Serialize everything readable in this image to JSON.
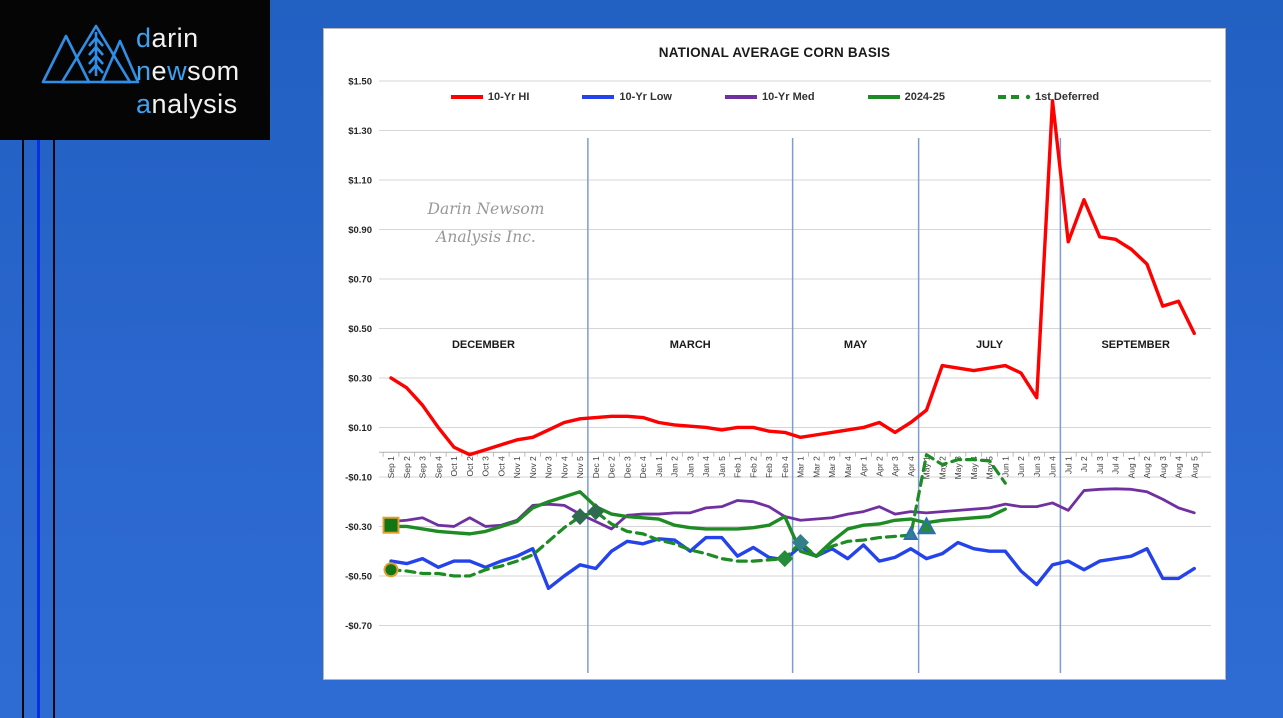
{
  "logo": {
    "accent_color": "#3da2f2",
    "words": [
      {
        "text": "darin",
        "accent_chars": [
          0
        ]
      },
      {
        "text": "newsom",
        "accent_chars": [
          0,
          2
        ]
      },
      {
        "text": "analysis",
        "accent_chars": [
          0
        ]
      }
    ]
  },
  "watermark": {
    "line1": "Darin Newsom",
    "line2": "Analysis Inc."
  },
  "chart_data": {
    "type": "line",
    "title": "NATIONAL AVERAGE CORN BASIS",
    "xlabel": "",
    "ylabel": "",
    "ylim": [
      -0.8,
      1.6
    ],
    "grid": true,
    "legend_position": "top",
    "y_ticks": [
      {
        "label": "$1.50",
        "value": 1.5
      },
      {
        "label": "$1.30",
        "value": 1.3
      },
      {
        "label": "$1.10",
        "value": 1.1
      },
      {
        "label": "$0.90",
        "value": 0.9
      },
      {
        "label": "$0.70",
        "value": 0.7
      },
      {
        "label": "$0.50",
        "value": 0.5
      },
      {
        "label": "$0.30",
        "value": 0.3
      },
      {
        "label": "$0.10",
        "value": 0.1
      },
      {
        "label": "-$0.10",
        "value": -0.1
      },
      {
        "label": "-$0.30",
        "value": -0.3
      },
      {
        "label": "-$0.50",
        "value": -0.5
      },
      {
        "label": "-$0.70",
        "value": -0.7
      }
    ],
    "categories": [
      "Sep 1",
      "Sep 2",
      "Sep 3",
      "Sep 4",
      "Oct 1",
      "Oct 2",
      "Oct 3",
      "Oct 4",
      "Nov 1",
      "Nov 2",
      "Nov 3",
      "Nov 4",
      "Nov 5",
      "Dec 1",
      "Dec 2",
      "Dec 3",
      "Dec 4",
      "Jan 1",
      "Jan 2",
      "Jan 3",
      "Jan 4",
      "Jan 5",
      "Feb 1",
      "Feb 2",
      "Feb 3",
      "Feb 4",
      "Mar 1",
      "Mar 2",
      "Mar 3",
      "Mar 4",
      "Apr 1",
      "Apr 2",
      "Apr 3",
      "Apr 4",
      "May 1",
      "May 2",
      "May 3",
      "May 4",
      "May 5",
      "Jun 1",
      "Jun 2",
      "Jun 3",
      "Jun 4",
      "Jul 1",
      "Ju 2",
      "Jul 3",
      "Jul 4",
      "Aug 1",
      "Aug 2",
      "Aug 3",
      "Aug 4",
      "Aug 5"
    ],
    "series": [
      {
        "name": "10-Yr HI",
        "color": "#fe0000",
        "width": 3.4,
        "dash": null,
        "values": [
          0.3,
          0.26,
          0.19,
          0.1,
          0.02,
          -0.01,
          0.01,
          0.03,
          0.05,
          0.06,
          0.09,
          0.12,
          0.135,
          0.14,
          0.145,
          0.145,
          0.14,
          0.12,
          0.11,
          0.105,
          0.1,
          0.09,
          0.1,
          0.1,
          0.085,
          0.08,
          0.06,
          0.07,
          0.08,
          0.09,
          0.1,
          0.12,
          0.08,
          0.12,
          0.17,
          0.35,
          0.34,
          0.33,
          0.34,
          0.35,
          0.32,
          0.22,
          1.42,
          0.85,
          1.02,
          0.87,
          0.86,
          0.82,
          0.76,
          0.59,
          0.61,
          0.48
        ]
      },
      {
        "name": "10-Yr Low",
        "color": "#2543ea",
        "width": 3.4,
        "dash": null,
        "values": [
          -0.44,
          -0.45,
          -0.43,
          -0.465,
          -0.44,
          -0.44,
          -0.465,
          -0.44,
          -0.42,
          -0.39,
          -0.55,
          -0.5,
          -0.455,
          -0.47,
          -0.4,
          -0.36,
          -0.37,
          -0.35,
          -0.355,
          -0.4,
          -0.345,
          -0.345,
          -0.42,
          -0.385,
          -0.425,
          -0.435,
          -0.38,
          -0.42,
          -0.39,
          -0.43,
          -0.375,
          -0.44,
          -0.425,
          -0.39,
          -0.43,
          -0.41,
          -0.365,
          -0.39,
          -0.4,
          -0.4,
          -0.48,
          -0.535,
          -0.455,
          -0.44,
          -0.475,
          -0.44,
          -0.43,
          -0.42,
          -0.39,
          -0.51,
          -0.51,
          -0.47
        ]
      },
      {
        "name": "10-Yr Med",
        "color": "#7030a0",
        "width": 2.8,
        "dash": null,
        "values": [
          -0.28,
          -0.275,
          -0.265,
          -0.295,
          -0.3,
          -0.265,
          -0.3,
          -0.295,
          -0.275,
          -0.215,
          -0.21,
          -0.215,
          -0.25,
          -0.28,
          -0.31,
          -0.255,
          -0.25,
          -0.25,
          -0.245,
          -0.245,
          -0.225,
          -0.22,
          -0.195,
          -0.2,
          -0.22,
          -0.26,
          -0.275,
          -0.27,
          -0.265,
          -0.25,
          -0.24,
          -0.22,
          -0.25,
          -0.24,
          -0.245,
          -0.24,
          -0.235,
          -0.23,
          -0.225,
          -0.21,
          -0.22,
          -0.22,
          -0.205,
          -0.235,
          -0.155,
          -0.15,
          -0.148,
          -0.15,
          -0.16,
          -0.19,
          -0.225,
          -0.245
        ]
      },
      {
        "name": "2024-25",
        "color": "#1e8b24",
        "width": 3.4,
        "dash": null,
        "values": [
          -0.3,
          -0.3,
          -0.31,
          -0.32,
          -0.325,
          -0.33,
          -0.32,
          -0.3,
          -0.28,
          -0.225,
          -0.2,
          -0.18,
          -0.16,
          -0.22,
          -0.25,
          -0.26,
          -0.265,
          -0.27,
          -0.295,
          -0.305,
          -0.31,
          -0.31,
          -0.31,
          -0.305,
          -0.295,
          -0.26,
          -0.4,
          -0.42,
          -0.36,
          -0.31,
          -0.295,
          -0.29,
          -0.275,
          -0.27,
          -0.285,
          -0.275,
          -0.27,
          -0.265,
          -0.26,
          -0.23,
          null,
          null,
          null,
          null,
          null,
          null,
          null,
          null,
          null,
          null,
          null,
          null
        ]
      },
      {
        "name": "1st Deferred",
        "color": "#1e8b24",
        "width": 3.2,
        "dash": "9 6",
        "values": [
          -0.475,
          -0.48,
          -0.49,
          -0.49,
          -0.5,
          -0.5,
          -0.475,
          -0.46,
          -0.44,
          -0.415,
          -0.36,
          -0.305,
          -0.26,
          -0.24,
          -0.29,
          -0.32,
          -0.33,
          -0.355,
          -0.37,
          -0.395,
          -0.41,
          -0.43,
          -0.44,
          -0.44,
          -0.435,
          -0.43,
          -0.365,
          -0.42,
          -0.38,
          -0.36,
          -0.355,
          -0.345,
          -0.34,
          -0.335,
          -0.01,
          -0.05,
          -0.03,
          -0.03,
          -0.035,
          -0.125,
          null,
          null,
          null,
          null,
          null,
          null,
          null,
          null,
          null,
          null,
          null,
          null
        ]
      }
    ],
    "markers": [
      {
        "shape": "square",
        "category": "Sep 1",
        "value": -0.295,
        "fill": "#147514",
        "stroke": "#e0a030",
        "size": 15
      },
      {
        "shape": "circle",
        "category": "Sep 1",
        "value": -0.475,
        "fill": "#147514",
        "stroke": "#e0a030",
        "size": 13
      },
      {
        "shape": "diamond",
        "category": "Nov 5",
        "value": -0.26,
        "fill": "#2e6b4f",
        "stroke": "none",
        "size": 12
      },
      {
        "shape": "diamond",
        "category": "Dec 1",
        "value": -0.24,
        "fill": "#2e6b4f",
        "stroke": "none",
        "size": 12
      },
      {
        "shape": "diamond",
        "category": "Feb 4",
        "value": -0.43,
        "fill": "#268b3a",
        "stroke": "none",
        "size": 12
      },
      {
        "shape": "diamond",
        "category": "Mar 1",
        "value": -0.365,
        "fill": "#33808a",
        "stroke": "none",
        "size": 12
      },
      {
        "shape": "triangle",
        "category": "Apr 4",
        "value": -0.33,
        "fill": "#33808a",
        "stroke": "#2c6fb5",
        "size": 12
      },
      {
        "shape": "triangle",
        "category": "May 1",
        "value": -0.3,
        "fill": "#268b3a",
        "stroke": "#2c6fb5",
        "size": 16
      }
    ],
    "section_lines_before": [
      "Dec 1",
      "Mar 1",
      "May 1",
      "Jul 1"
    ],
    "section_line_color": "#7d9bd9",
    "section_labels": [
      "DECEMBER",
      "MARCH",
      "MAY",
      "JULY",
      "SEPTEMBER"
    ],
    "legend": [
      {
        "label": "10-Yr HI",
        "color": "#fe0000",
        "dash": false
      },
      {
        "label": "10-Yr Low",
        "color": "#2543ea",
        "dash": false
      },
      {
        "label": "10-Yr Med",
        "color": "#7030a0",
        "dash": false
      },
      {
        "label": "2024-25",
        "color": "#1e8b24",
        "dash": false
      },
      {
        "label": "1st Deferred",
        "color": "#1e8b24",
        "dash": true
      }
    ]
  }
}
